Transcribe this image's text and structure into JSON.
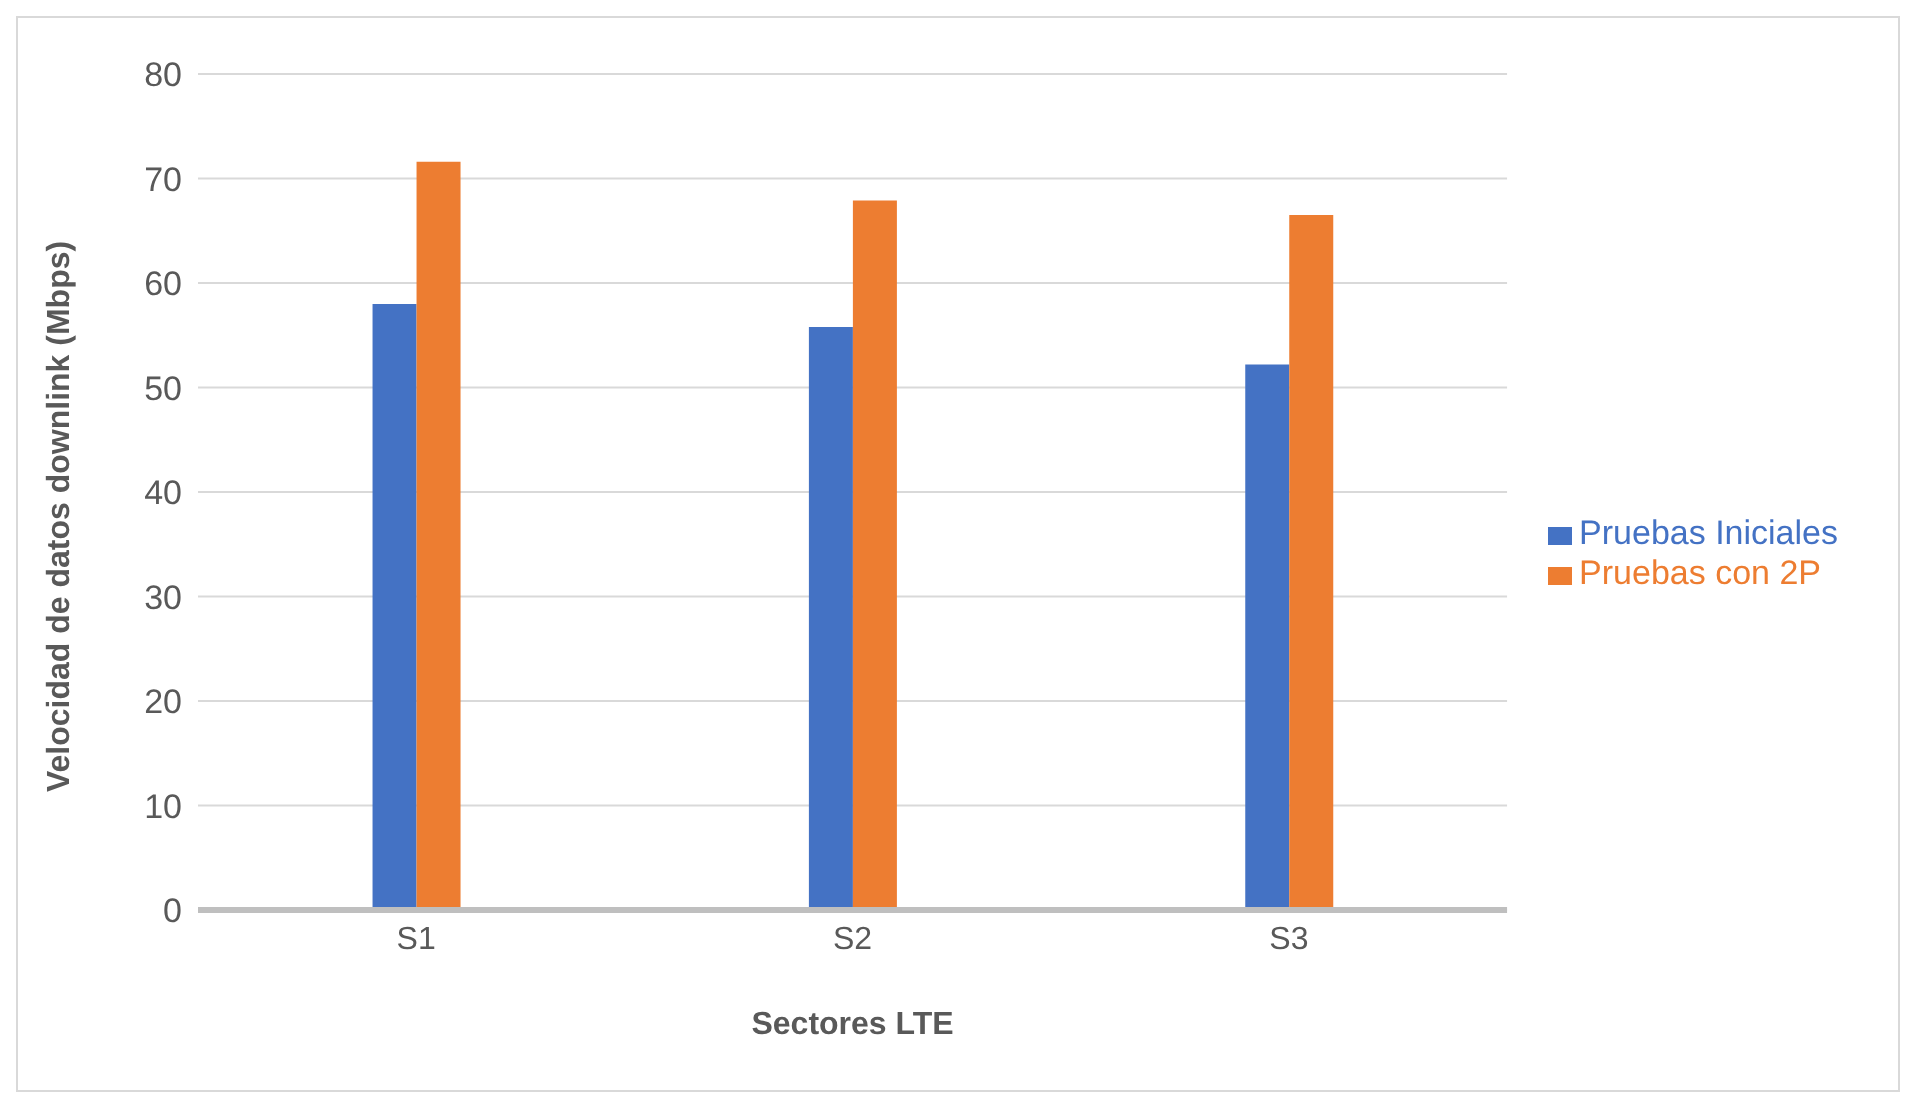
{
  "chart_data": {
    "type": "bar",
    "xlabel": "Sectores LTE",
    "ylabel": "Velocidad de datos downlink (Mbps)",
    "categories": [
      "S1",
      "S2",
      "S3"
    ],
    "series": [
      {
        "name": "Pruebas  Iniciales",
        "color": "#4472c4",
        "values": [
          58.0,
          55.8,
          52.2
        ]
      },
      {
        "name": "Pruebas con 2P",
        "color": "#ed7d31",
        "values": [
          71.6,
          67.9,
          66.5
        ]
      }
    ],
    "ylim": [
      0,
      80
    ],
    "yticks": [
      0,
      10,
      20,
      30,
      40,
      50,
      60,
      70,
      80
    ],
    "grid": "y",
    "legend": "right"
  }
}
